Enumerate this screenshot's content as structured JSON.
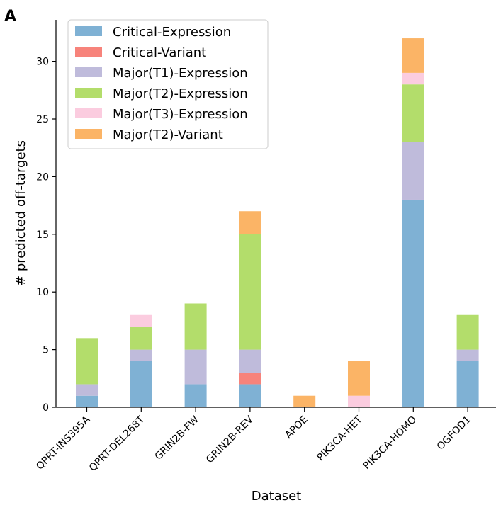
{
  "panel_label": "A",
  "chart_data": {
    "type": "bar",
    "stacked": true,
    "title": "",
    "xlabel": "Dataset",
    "ylabel": "# predicted off-targets",
    "ylim": [
      0,
      33.6
    ],
    "yticks": [
      0,
      5,
      10,
      15,
      20,
      25,
      30
    ],
    "grid": false,
    "legend_position": "top-left",
    "categories": [
      "QPRT-INS395A",
      "QPRT-DEL268T",
      "GRIN2B-FW",
      "GRIN2B-REV",
      "APOE",
      "PIK3CA-HET",
      "PIK3CA-HOMO",
      "OGFOD1"
    ],
    "series": [
      {
        "name": "Critical-Expression",
        "color": "#7fb1d4",
        "values": [
          1,
          4,
          2,
          2,
          0,
          0,
          18,
          4
        ]
      },
      {
        "name": "Critical-Variant",
        "color": "#f7837b",
        "values": [
          0,
          0,
          0,
          1,
          0,
          0,
          0,
          0
        ]
      },
      {
        "name": "Major(T1)-Expression",
        "color": "#bfbbdb",
        "values": [
          1,
          1,
          3,
          2,
          0,
          0,
          5,
          1
        ]
      },
      {
        "name": "Major(T2)-Expression",
        "color": "#b3dd6b",
        "values": [
          4,
          2,
          4,
          10,
          0,
          0,
          5,
          3
        ]
      },
      {
        "name": "Major(T3)-Expression",
        "color": "#fbccdf",
        "values": [
          0,
          1,
          0,
          0,
          0,
          1,
          1,
          0
        ]
      },
      {
        "name": "Major(T2)-Variant",
        "color": "#fbb466",
        "values": [
          0,
          0,
          0,
          2,
          1,
          3,
          3,
          0
        ]
      }
    ]
  }
}
